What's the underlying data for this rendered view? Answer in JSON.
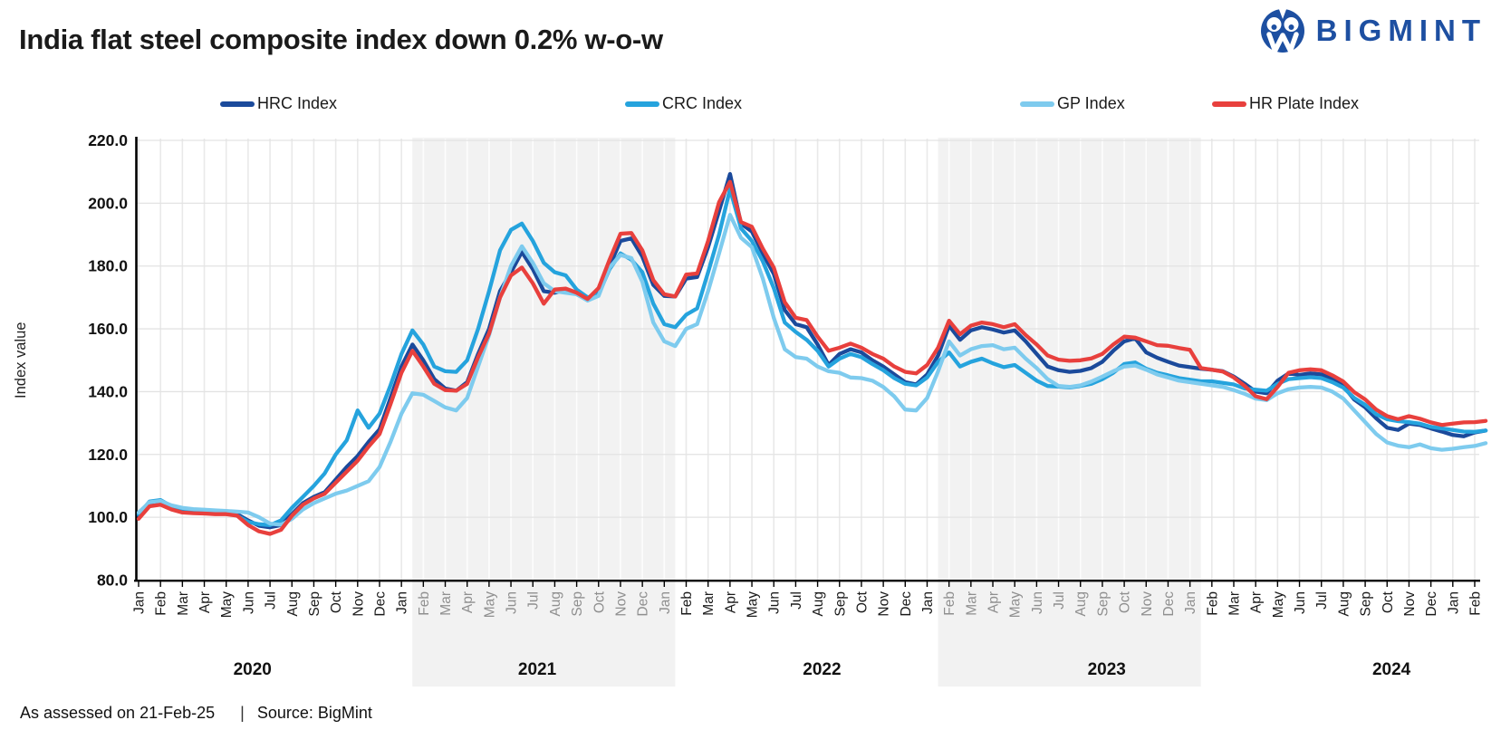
{
  "header": {
    "title": "India flat steel composite index down 0.2% w-o-w",
    "brand": "BIGMINT"
  },
  "footer": {
    "assessed": "As assessed on 21-Feb-25",
    "separator": "|",
    "source": "Source: BigMint"
  },
  "colors": {
    "brand_blue": "#1d4fa1",
    "band_fill": "#f2f2f2",
    "grid_line": "#e3e3e3",
    "axis_line": "#000000",
    "month_label": "#1a1a1a",
    "month_label_in_band": "#8f8f8f",
    "text": "#1a1a1a"
  },
  "chart_data": {
    "type": "line",
    "title": "India flat steel composite index down 0.2% w-o-w",
    "xlabel": "",
    "ylabel": "Index value",
    "ylim": [
      80,
      220
    ],
    "yticks": [
      80,
      100,
      120,
      140,
      160,
      180,
      200,
      220
    ],
    "ytick_labels": [
      "80.0",
      "100.0",
      "120.0",
      "140.0",
      "160.0",
      "180.0",
      "200.0",
      "220.0"
    ],
    "grid": true,
    "legend_position": "top",
    "points_per_month": 2,
    "month_labels": [
      "Jan",
      "Feb",
      "Mar",
      "Apr",
      "May",
      "Jun",
      "Jul",
      "Aug",
      "Sep",
      "Oct",
      "Nov",
      "Dec",
      "Jan",
      "Feb",
      "Mar",
      "Apr",
      "May",
      "Jun",
      "Jul",
      "Aug",
      "Sep",
      "Oct",
      "Nov",
      "Dec",
      "Jan",
      "Feb",
      "Mar",
      "Apr",
      "May",
      "Jun",
      "Jul",
      "Aug",
      "Sep",
      "Oct",
      "Nov",
      "Dec",
      "Jan",
      "Feb",
      "Mar",
      "Apr",
      "May",
      "Jun",
      "Jul",
      "Aug",
      "Sep",
      "Oct",
      "Nov",
      "Dec",
      "Jan",
      "Feb",
      "Mar",
      "Apr",
      "May",
      "Jun",
      "Jul",
      "Aug",
      "Sep",
      "Oct",
      "Nov",
      "Dec",
      "Jan",
      "Feb"
    ],
    "year_labels": [
      "2020",
      "2021",
      "2022",
      "2023",
      "2024"
    ],
    "shaded_years": [
      "2021",
      "2023"
    ],
    "series": [
      {
        "name": "HRC Index",
        "color": "#1b4a9b",
        "values": [
          100.5,
          104.5,
          105,
          103,
          102.5,
          102,
          102,
          101.8,
          101.5,
          101,
          99,
          97.3,
          96.8,
          97.5,
          101,
          104.5,
          106.5,
          108,
          112,
          116,
          119.5,
          124,
          128,
          138,
          148,
          155,
          150,
          144,
          141,
          140.3,
          143,
          152,
          160,
          172,
          178,
          184.5,
          179,
          172,
          171.5,
          172.5,
          171,
          169.3,
          172,
          180,
          188,
          188.8,
          183,
          174,
          170.5,
          170.3,
          176,
          176.5,
          186,
          197.5,
          209.3,
          193.5,
          191,
          184,
          177.5,
          166,
          161.5,
          160.5,
          155,
          148.5,
          152,
          153.5,
          152.5,
          150,
          148,
          145.5,
          143,
          142.3,
          145.5,
          151.5,
          161,
          156.5,
          159.5,
          160.5,
          159.8,
          158.8,
          159.5,
          156,
          152,
          148,
          146.8,
          146.3,
          146.6,
          147.5,
          149.5,
          153,
          156,
          157,
          152.5,
          150.8,
          149.5,
          148.3,
          147.8,
          147.3,
          147,
          146.5,
          144.8,
          142.5,
          140,
          139.5,
          143.5,
          145.8,
          145.3,
          145.8,
          145.5,
          144,
          141.8,
          137.5,
          135,
          131.5,
          128.5,
          127.8,
          129.8,
          129.4,
          128.3,
          127.3,
          126.2,
          125.8,
          127,
          127.6
        ]
      },
      {
        "name": "CRC Index",
        "color": "#25a3dd",
        "values": [
          101,
          105,
          105.5,
          103.5,
          102.8,
          102.2,
          102,
          101.5,
          101.2,
          100.5,
          98.5,
          97.8,
          97.5,
          99,
          103,
          106.5,
          110,
          114,
          120,
          124.5,
          134,
          128.5,
          133,
          142,
          152,
          159.5,
          155,
          148,
          146.5,
          146.3,
          150,
          160,
          172,
          185,
          191.5,
          193.5,
          188,
          181,
          178,
          177,
          172.5,
          170,
          171,
          179,
          184,
          182,
          178,
          168,
          161.5,
          160.5,
          164.5,
          166.5,
          178,
          190,
          204.5,
          192,
          188,
          181.5,
          173,
          162,
          159,
          156.5,
          153,
          148,
          150.5,
          152,
          151,
          148.8,
          146.8,
          144.3,
          142.5,
          142,
          144.5,
          149.5,
          152.5,
          148,
          149.5,
          150.5,
          149,
          147.8,
          148.5,
          146,
          143.5,
          141.8,
          141.6,
          141.3,
          141.8,
          142.5,
          144,
          146,
          148.8,
          149.3,
          147.3,
          146,
          145.2,
          144.3,
          143.8,
          143.3,
          143.3,
          142.8,
          142.3,
          141,
          140.6,
          140.3,
          142.5,
          144,
          144.3,
          144.6,
          144.3,
          143,
          141.3,
          138,
          135.8,
          132.8,
          131.2,
          130.6,
          130.3,
          129.8,
          128.8,
          128.3,
          127.8,
          127.3,
          127.2,
          127.6
        ]
      },
      {
        "name": "GP Index",
        "color": "#7ecbee",
        "values": [
          101.5,
          104.8,
          105.2,
          103.8,
          103,
          102.6,
          102.4,
          102.2,
          102,
          101.8,
          101.5,
          100,
          98,
          97.6,
          99.5,
          102.5,
          104.5,
          106,
          107.5,
          108.5,
          110,
          111.5,
          116,
          124,
          133,
          139.5,
          139,
          137,
          135,
          134,
          138,
          148,
          158,
          170,
          180,
          186.3,
          181,
          174.5,
          172,
          171.5,
          171,
          169,
          170.5,
          179.5,
          183.5,
          182.5,
          175,
          162,
          156,
          154.5,
          160,
          161.5,
          172,
          184,
          196.3,
          189,
          186,
          176,
          163.5,
          153.5,
          151,
          150.5,
          148,
          146.5,
          146,
          144.5,
          144.3,
          143.5,
          141.5,
          138.5,
          134.3,
          134,
          138,
          146.5,
          156,
          151.5,
          153.5,
          154.5,
          154.8,
          153.5,
          154,
          150.5,
          147.5,
          144,
          141.8,
          141.5,
          142,
          143.2,
          144.8,
          146.5,
          148,
          148.3,
          147,
          145.5,
          144.5,
          143.5,
          143,
          142.5,
          142,
          141.5,
          140.5,
          139.3,
          137.8,
          137.3,
          139.5,
          140.8,
          141.3,
          141.5,
          141.3,
          140,
          137.8,
          134,
          130.3,
          126.5,
          123.8,
          122.8,
          122.3,
          123.2,
          122,
          121.5,
          121.8,
          122.3,
          122.7,
          123.6
        ]
      },
      {
        "name": "HR Plate Index",
        "color": "#e8403d",
        "values": [
          99.5,
          103.5,
          104,
          102.5,
          101.5,
          101.3,
          101.2,
          101,
          101,
          100.5,
          97.5,
          95.5,
          94.7,
          96,
          100.5,
          104,
          106,
          107.5,
          111,
          114.5,
          118,
          122.5,
          126.5,
          136,
          146,
          153,
          148,
          142.5,
          140.5,
          140.3,
          142.5,
          151,
          158.5,
          170,
          177,
          179.5,
          174.5,
          168,
          172.5,
          172.8,
          171.5,
          169.5,
          173,
          182,
          190.3,
          190.5,
          185,
          175.5,
          171,
          170.3,
          177.3,
          177.6,
          188,
          200.3,
          206.8,
          194,
          192.5,
          185.5,
          179.5,
          168.5,
          163.5,
          162.8,
          157.5,
          153,
          154,
          155.3,
          154,
          152,
          150.5,
          148,
          146.3,
          145.8,
          148.5,
          154,
          162.6,
          158.3,
          161,
          162,
          161.5,
          160.5,
          161.5,
          158,
          155,
          151.5,
          150.2,
          149.8,
          150,
          150.6,
          152,
          155,
          157.5,
          157.2,
          156,
          154.8,
          154.6,
          153.9,
          153.3,
          147.5,
          147,
          146.4,
          144.5,
          141.8,
          138.5,
          137.6,
          141.5,
          146,
          146.8,
          147.1,
          146.8,
          145.2,
          143.2,
          139.8,
          137.5,
          134.3,
          132.2,
          131.2,
          132.2,
          131.4,
          130.2,
          129.4,
          129.8,
          130.2,
          130.3,
          130.7
        ]
      }
    ]
  }
}
